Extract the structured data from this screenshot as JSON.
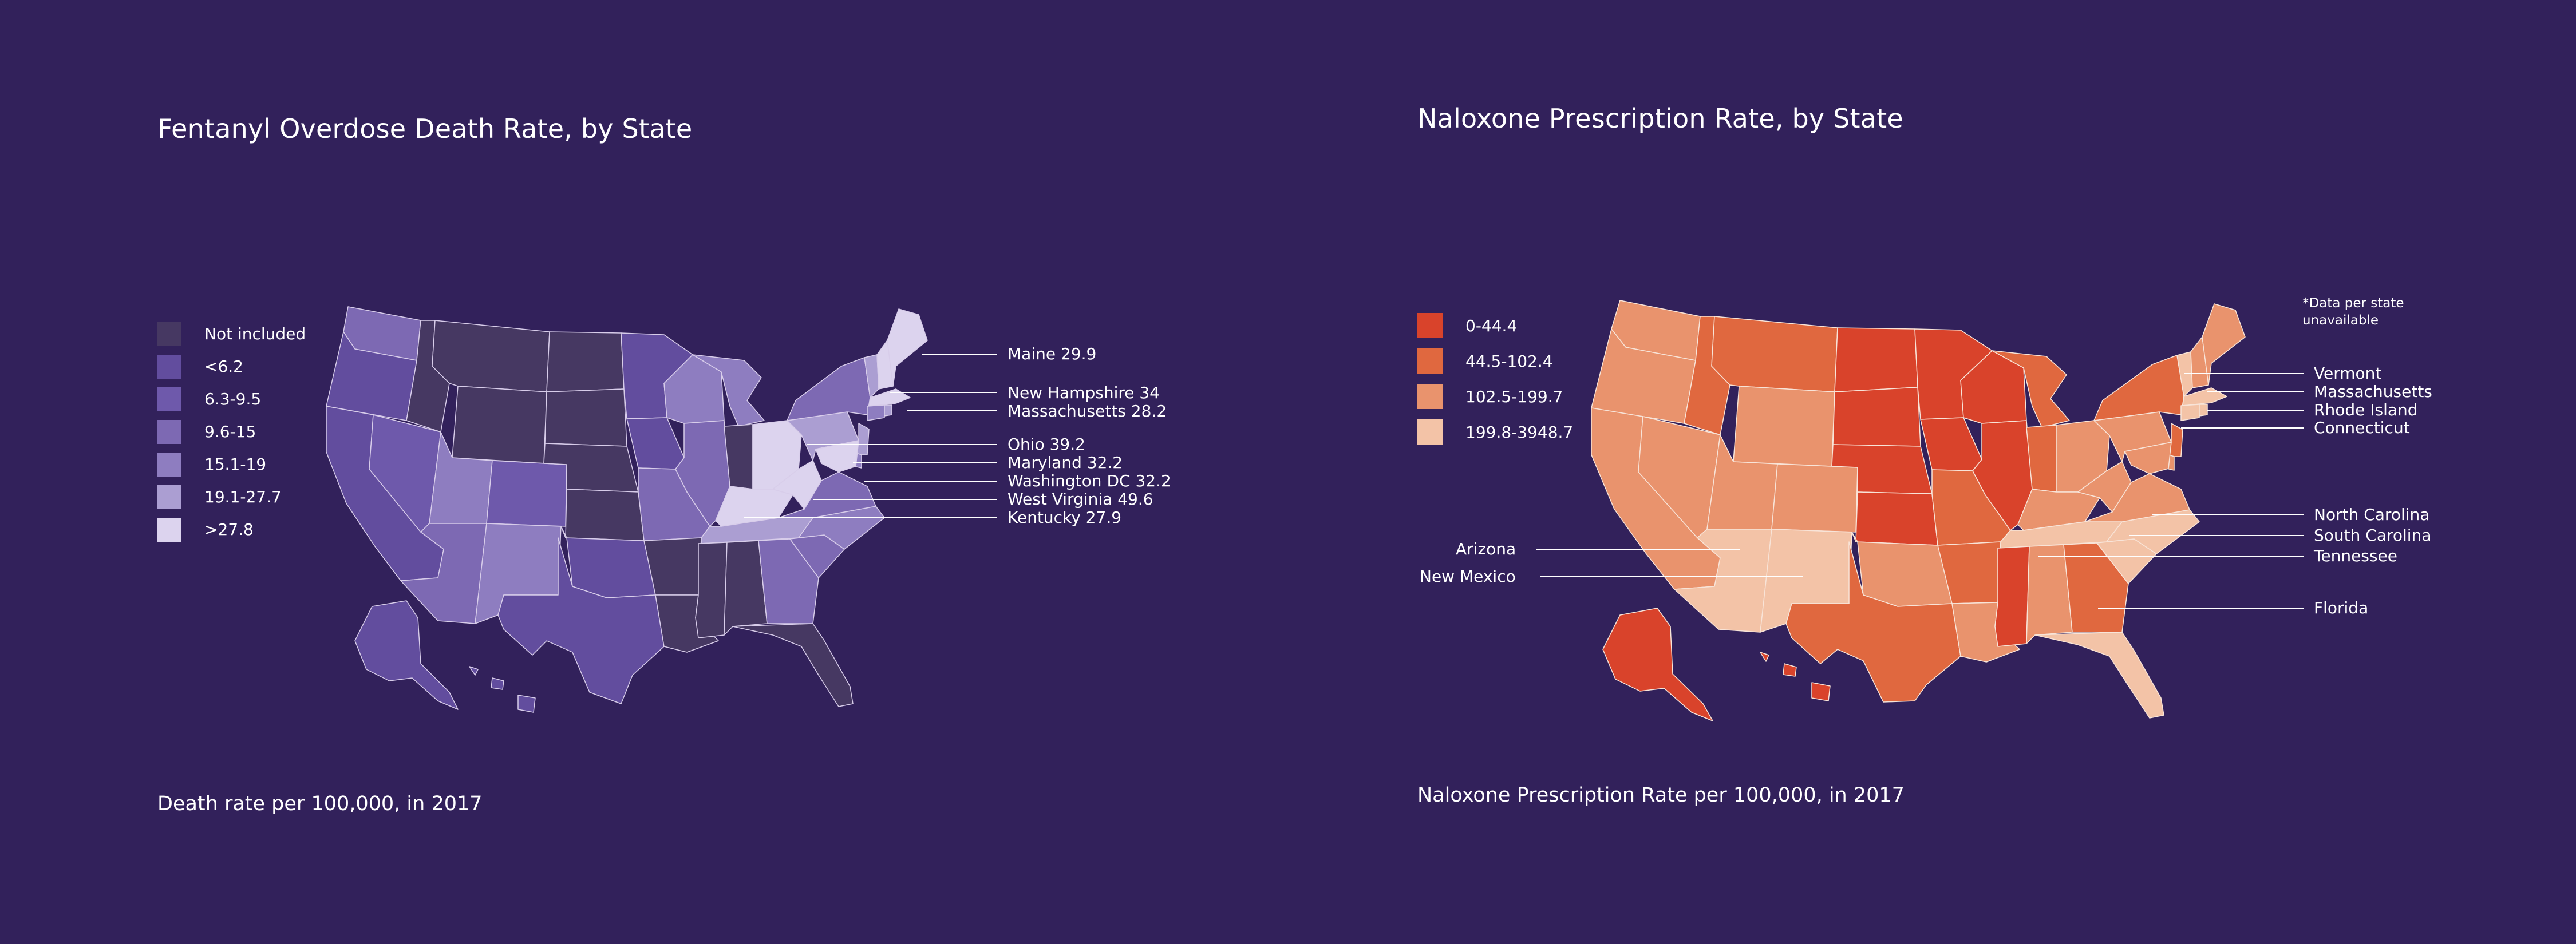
{
  "colors": {
    "background": "#32215b",
    "text": "#ffffff",
    "state_border": "#d8cdea"
  },
  "left_panel": {
    "title": "Fentanyl Overdose Death Rate, by State",
    "footnote": "Death rate per 100,000, in 2017",
    "legend": [
      {
        "label": "Not included",
        "color": "#463862"
      },
      {
        "label": "<6.2",
        "color": "#624d9e"
      },
      {
        "label": "6.3-9.5",
        "color": "#6e59ab"
      },
      {
        "label": "9.6-15",
        "color": "#7d69b3"
      },
      {
        "label": "15.1-19",
        "color": "#8e7dc0"
      },
      {
        "label": "19.1-27.7",
        "color": "#ab9ed2"
      },
      {
        "label": ">27.8",
        "color": "#dcd3ee"
      }
    ],
    "callouts": [
      {
        "label": "Maine 29.9"
      },
      {
        "label": "New Hampshire 34"
      },
      {
        "label": "Massachusetts 28.2"
      },
      {
        "label": "Ohio 39.2"
      },
      {
        "label": "Maryland 32.2"
      },
      {
        "label": "Washington DC  32.2"
      },
      {
        "label": "West Virginia 49.6"
      },
      {
        "label": "Kentucky  27.9"
      }
    ]
  },
  "right_panel": {
    "title": "Naloxone Prescription Rate, by State",
    "footnote": "Naloxone Prescription Rate per 100,000, in 2017",
    "note": "*Data per state unavailable",
    "legend": [
      {
        "label": "0-44.4",
        "color": "#d9432b"
      },
      {
        "label": "44.5-102.4",
        "color": "#e0683f"
      },
      {
        "label": "102.5-199.7",
        "color": "#e9936d"
      },
      {
        "label": "199.8-3948.7",
        "color": "#f3c3a7"
      }
    ],
    "callouts_right": [
      {
        "label": "Vermont"
      },
      {
        "label": "Massachusetts"
      },
      {
        "label": "Rhode Island"
      },
      {
        "label": "Connecticut"
      },
      {
        "label": "North Carolina"
      },
      {
        "label": "South Carolina"
      },
      {
        "label": "Tennessee"
      },
      {
        "label": "Florida"
      }
    ],
    "callouts_left": [
      {
        "label": "Arizona"
      },
      {
        "label": "New Mexico"
      }
    ]
  }
}
